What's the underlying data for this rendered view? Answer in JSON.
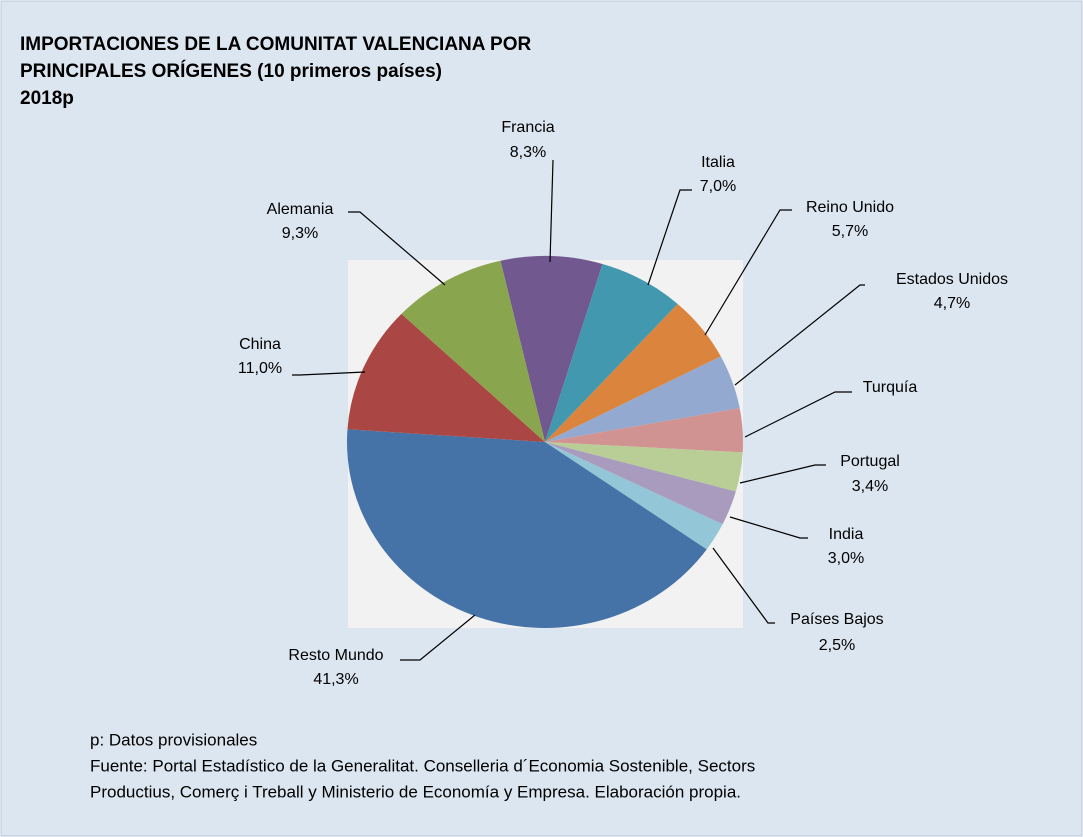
{
  "chart_data": {
    "type": "pie",
    "title": [
      "IMPORTACIONES DE LA COMUNITAT VALENCIANA POR",
      "PRINCIPALES ORÍGENES (10 primeros países)",
      "2018p"
    ],
    "categories": [
      "Francia",
      "Italia",
      "Reino Unido",
      "Estados Unidos",
      "Turquía",
      "Portugal",
      "India",
      "Países Bajos",
      "Resto Mundo",
      "China",
      "Alemania"
    ],
    "values": [
      8.3,
      7.0,
      5.7,
      4.7,
      3.8,
      3.4,
      3.0,
      2.5,
      41.3,
      11.0,
      9.3
    ],
    "value_labels": [
      "8,3%",
      "7,0%",
      "5,7%",
      "4,7%",
      null,
      "3,4%",
      "3,0%",
      "2,5%",
      "41,3%",
      "11,0%",
      "9,3%"
    ],
    "colors": [
      "#71588f",
      "#4198af",
      "#db843d",
      "#93a9cf",
      "#d19392",
      "#b9cd96",
      "#a99bbd",
      "#93c6d6",
      "#4572a7",
      "#aa4643",
      "#89a54e"
    ],
    "notes": [
      "p: Datos provisionales",
      "Fuente: Portal Estadístico de la Generalitat. Conselleria d´Economia Sostenible, Sectors",
      "Productius, Comerç i Treball y Ministerio de Economía y Empresa. Elaboración propia."
    ]
  }
}
